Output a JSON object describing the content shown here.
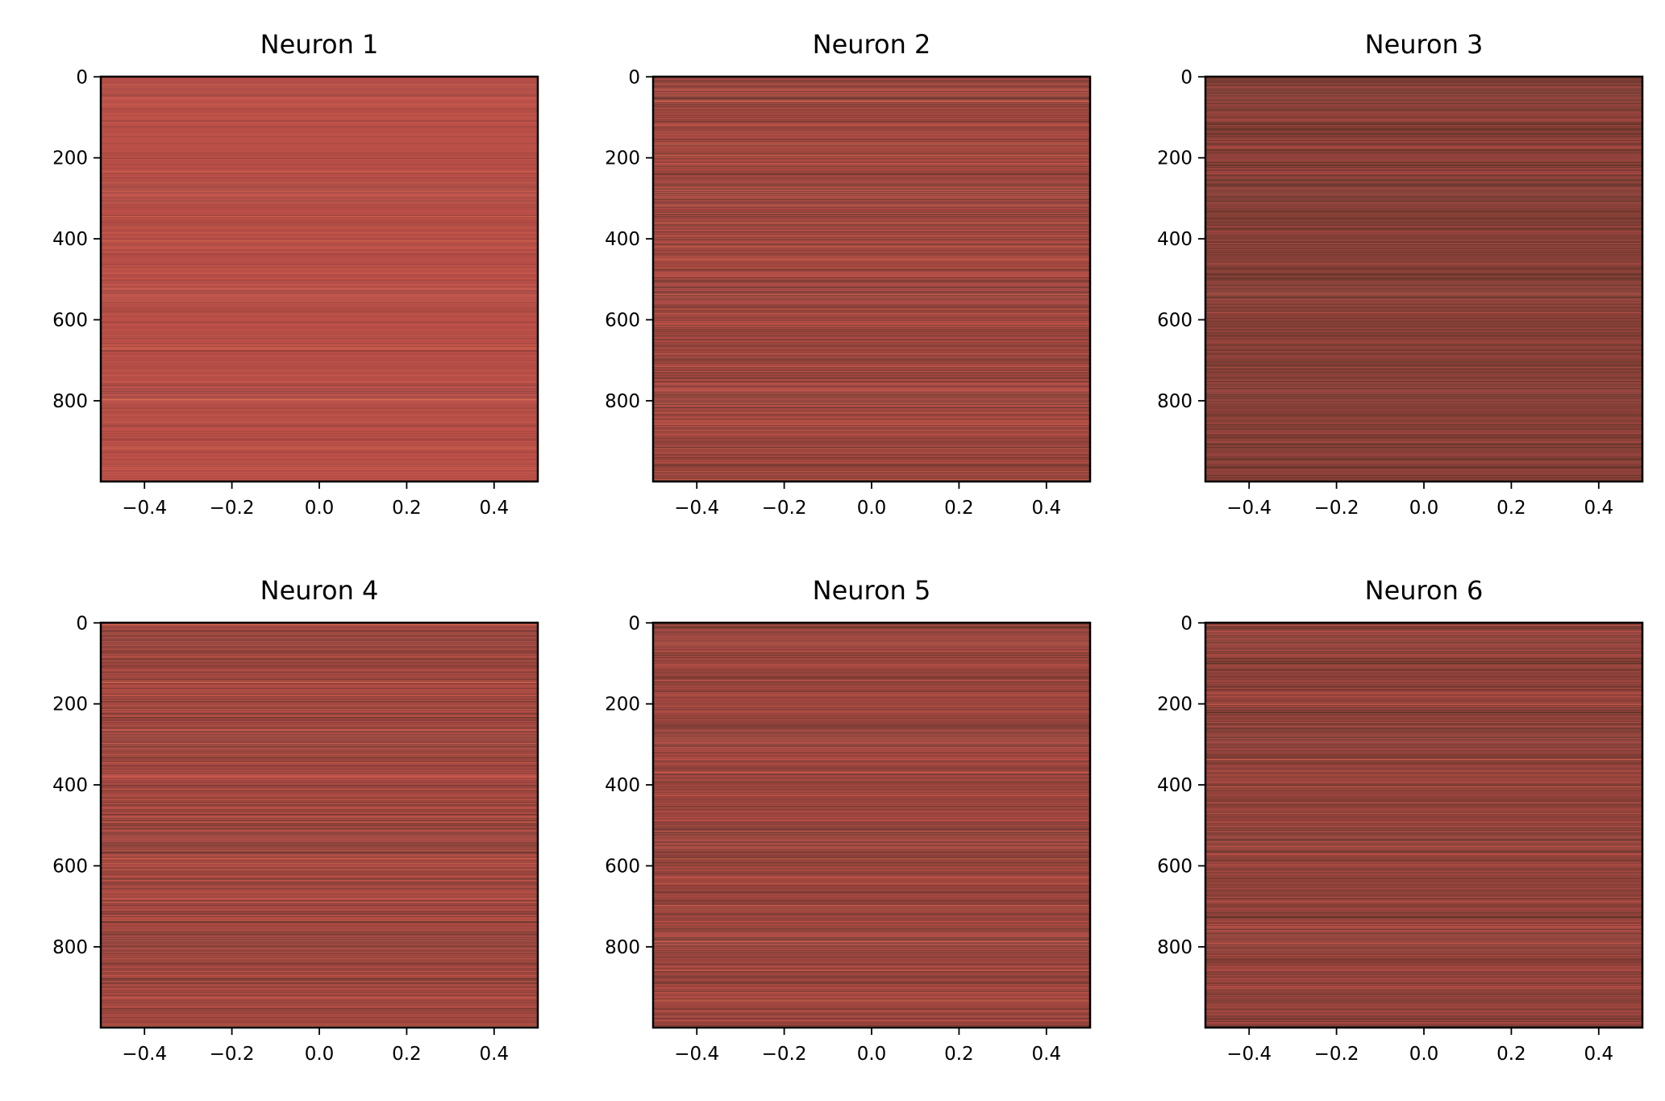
{
  "chart_data": [
    {
      "type": "heatmap",
      "title": "Neuron 1",
      "xlim": [
        -0.5,
        0.5
      ],
      "ylim": [
        999.5,
        -0.5
      ],
      "x_ticks": [
        -0.4,
        -0.2,
        0.0,
        0.2,
        0.4
      ],
      "x_tick_labels": [
        "−0.4",
        "−0.2",
        "0.0",
        "0.2",
        "0.4"
      ],
      "y_ticks": [
        0,
        200,
        400,
        600,
        800
      ],
      "y_tick_labels": [
        "0",
        "200",
        "400",
        "600",
        "800"
      ],
      "n_rows": 1000,
      "n_cols": 1,
      "colormap": [
        "#3a2a1a",
        "#7a3c34",
        "#c0504a",
        "#e07a52"
      ],
      "mean_intensity": 0.62,
      "variation": 0.14,
      "seed": 11
    },
    {
      "type": "heatmap",
      "title": "Neuron 2",
      "xlim": [
        -0.5,
        0.5
      ],
      "ylim": [
        999.5,
        -0.5
      ],
      "x_ticks": [
        -0.4,
        -0.2,
        0.0,
        0.2,
        0.4
      ],
      "x_tick_labels": [
        "−0.4",
        "−0.2",
        "0.0",
        "0.2",
        "0.4"
      ],
      "y_ticks": [
        0,
        200,
        400,
        600,
        800
      ],
      "y_tick_labels": [
        "0",
        "200",
        "400",
        "600",
        "800"
      ],
      "n_rows": 1000,
      "n_cols": 1,
      "colormap": [
        "#3a2a1a",
        "#7a3c34",
        "#c0504a",
        "#e07a52"
      ],
      "mean_intensity": 0.5,
      "variation": 0.28,
      "seed": 23
    },
    {
      "type": "heatmap",
      "title": "Neuron 3",
      "xlim": [
        -0.5,
        0.5
      ],
      "ylim": [
        999.5,
        -0.5
      ],
      "x_ticks": [
        -0.4,
        -0.2,
        0.0,
        0.2,
        0.4
      ],
      "x_tick_labels": [
        "−0.4",
        "−0.2",
        "0.0",
        "0.2",
        "0.4"
      ],
      "y_ticks": [
        0,
        200,
        400,
        600,
        800
      ],
      "y_tick_labels": [
        "0",
        "200",
        "400",
        "600",
        "800"
      ],
      "n_rows": 1000,
      "n_cols": 1,
      "colormap": [
        "#3a2a1a",
        "#7a3c34",
        "#c0504a",
        "#e07a52"
      ],
      "mean_intensity": 0.38,
      "variation": 0.2,
      "seed": 37
    },
    {
      "type": "heatmap",
      "title": "Neuron 4",
      "xlim": [
        -0.5,
        0.5
      ],
      "ylim": [
        999.5,
        -0.5
      ],
      "x_ticks": [
        -0.4,
        -0.2,
        0.0,
        0.2,
        0.4
      ],
      "x_tick_labels": [
        "−0.4",
        "−0.2",
        "0.0",
        "0.2",
        "0.4"
      ],
      "y_ticks": [
        0,
        200,
        400,
        600,
        800
      ],
      "y_tick_labels": [
        "0",
        "200",
        "400",
        "600",
        "800"
      ],
      "n_rows": 1000,
      "n_cols": 1,
      "colormap": [
        "#3a2a1a",
        "#7a3c34",
        "#c0504a",
        "#e07a52"
      ],
      "mean_intensity": 0.5,
      "variation": 0.28,
      "seed": 41
    },
    {
      "type": "heatmap",
      "title": "Neuron 5",
      "xlim": [
        -0.5,
        0.5
      ],
      "ylim": [
        999.5,
        -0.5
      ],
      "x_ticks": [
        -0.4,
        -0.2,
        0.0,
        0.2,
        0.4
      ],
      "x_tick_labels": [
        "−0.4",
        "−0.2",
        "0.0",
        "0.2",
        "0.4"
      ],
      "y_ticks": [
        0,
        200,
        400,
        600,
        800
      ],
      "y_tick_labels": [
        "0",
        "200",
        "400",
        "600",
        "800"
      ],
      "n_rows": 1000,
      "n_cols": 1,
      "colormap": [
        "#3a2a1a",
        "#7a3c34",
        "#c0504a",
        "#e07a52"
      ],
      "mean_intensity": 0.48,
      "variation": 0.25,
      "seed": 53
    },
    {
      "type": "heatmap",
      "title": "Neuron 6",
      "xlim": [
        -0.5,
        0.5
      ],
      "ylim": [
        999.5,
        -0.5
      ],
      "x_ticks": [
        -0.4,
        -0.2,
        0.0,
        0.2,
        0.4
      ],
      "x_tick_labels": [
        "−0.4",
        "−0.2",
        "0.0",
        "0.2",
        "0.4"
      ],
      "y_ticks": [
        0,
        200,
        400,
        600,
        800
      ],
      "y_tick_labels": [
        "0",
        "200",
        "400",
        "600",
        "800"
      ],
      "n_rows": 1000,
      "n_cols": 1,
      "colormap": [
        "#3a2a1a",
        "#7a3c34",
        "#c0504a",
        "#e07a52"
      ],
      "mean_intensity": 0.44,
      "variation": 0.25,
      "seed": 67
    }
  ]
}
